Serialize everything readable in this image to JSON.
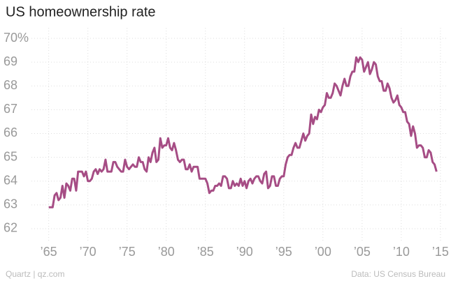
{
  "chart_data": {
    "type": "line",
    "title": "US homeownership rate",
    "source": "Data: US Census Bureau",
    "credit": "Quartz | qz.com",
    "xlim": [
      1962.8,
      2015.9
    ],
    "ylim": [
      61.5,
      70.44
    ],
    "xticks": [
      {
        "value": 1965,
        "label": "’65"
      },
      {
        "value": 1970,
        "label": "’70"
      },
      {
        "value": 1975,
        "label": "’75"
      },
      {
        "value": 1980,
        "label": "’80"
      },
      {
        "value": 1985,
        "label": "’85"
      },
      {
        "value": 1990,
        "label": "’90"
      },
      {
        "value": 1995,
        "label": "’95"
      },
      {
        "value": 2000,
        "label": "’00"
      },
      {
        "value": 2005,
        "label": "’05"
      },
      {
        "value": 2010,
        "label": "’10"
      },
      {
        "value": 2015,
        "label": "’15"
      }
    ],
    "yticks": [
      62,
      63,
      64,
      65,
      66,
      67,
      68,
      69,
      {
        "value": 70,
        "label": "70%"
      }
    ],
    "grid": true,
    "x": [
      1965,
      1965.25,
      1965.5,
      1965.75,
      1966,
      1966.25,
      1966.5,
      1966.75,
      1967,
      1967.25,
      1967.5,
      1967.75,
      1968,
      1968.25,
      1968.5,
      1968.75,
      1969,
      1969.25,
      1969.5,
      1969.75,
      1970,
      1970.25,
      1970.5,
      1970.75,
      1971,
      1971.25,
      1971.5,
      1971.75,
      1972,
      1972.25,
      1972.5,
      1972.75,
      1973,
      1973.25,
      1973.5,
      1973.75,
      1974,
      1974.25,
      1974.5,
      1974.75,
      1975,
      1975.25,
      1975.5,
      1975.75,
      1976,
      1976.25,
      1976.5,
      1976.75,
      1977,
      1977.25,
      1977.5,
      1977.75,
      1978,
      1978.25,
      1978.5,
      1978.75,
      1979,
      1979.25,
      1979.5,
      1979.75,
      1980,
      1980.25,
      1980.5,
      1980.75,
      1981,
      1981.25,
      1981.5,
      1981.75,
      1982,
      1982.25,
      1982.5,
      1982.75,
      1983,
      1983.25,
      1983.5,
      1983.75,
      1984,
      1984.25,
      1984.5,
      1984.75,
      1985,
      1985.25,
      1985.5,
      1985.75,
      1986,
      1986.25,
      1986.5,
      1986.75,
      1987,
      1987.25,
      1987.5,
      1987.75,
      1988,
      1988.25,
      1988.5,
      1988.75,
      1989,
      1989.25,
      1989.5,
      1989.75,
      1990,
      1990.25,
      1990.5,
      1990.75,
      1991,
      1991.25,
      1991.5,
      1991.75,
      1992,
      1992.25,
      1992.5,
      1992.75,
      1993,
      1993.25,
      1993.5,
      1993.75,
      1994,
      1994.25,
      1994.5,
      1994.75,
      1995,
      1995.25,
      1995.5,
      1995.75,
      1996,
      1996.25,
      1996.5,
      1996.75,
      1997,
      1997.25,
      1997.5,
      1997.75,
      1998,
      1998.25,
      1998.5,
      1998.75,
      1999,
      1999.25,
      1999.5,
      1999.75,
      2000,
      2000.25,
      2000.5,
      2000.75,
      2001,
      2001.25,
      2001.5,
      2001.75,
      2002,
      2002.25,
      2002.5,
      2002.75,
      2003,
      2003.25,
      2003.5,
      2003.75,
      2004,
      2004.25,
      2004.5,
      2004.75,
      2005,
      2005.25,
      2005.5,
      2005.75,
      2006,
      2006.25,
      2006.5,
      2006.75,
      2007,
      2007.25,
      2007.5,
      2007.75,
      2008,
      2008.25,
      2008.5,
      2008.75,
      2009,
      2009.25,
      2009.5,
      2009.75,
      2010,
      2010.25,
      2010.5,
      2010.75,
      2011,
      2011.25,
      2011.5,
      2011.75,
      2012,
      2012.25,
      2012.5,
      2012.75,
      2013,
      2013.25,
      2013.5,
      2013.75,
      2014,
      2014.25,
      2014.5
    ],
    "series": [
      {
        "color": "#a64d85",
        "values": [
          62.9,
          62.9,
          62.9,
          63.4,
          63.5,
          63.2,
          63.3,
          63.8,
          63.3,
          63.9,
          63.8,
          63.6,
          64.1,
          64.1,
          63.6,
          64.4,
          64.4,
          64.4,
          64.2,
          64.4,
          64.0,
          64.0,
          64.1,
          64.4,
          64.5,
          64.3,
          64.5,
          64.4,
          64.5,
          64.9,
          64.4,
          64.4,
          64.4,
          64.8,
          64.8,
          64.6,
          64.5,
          64.4,
          64.4,
          64.9,
          64.6,
          64.5,
          64.6,
          64.7,
          64.6,
          64.6,
          65.0,
          64.8,
          64.8,
          64.5,
          64.4,
          65.0,
          64.8,
          65.2,
          65.4,
          64.8,
          64.9,
          65.8,
          65.4,
          65.5,
          65.5,
          65.8,
          65.4,
          65.3,
          65.6,
          65.3,
          64.9,
          64.8,
          64.9,
          64.9,
          64.5,
          64.5,
          64.7,
          64.4,
          64.6,
          64.6,
          64.6,
          64.1,
          64.1,
          64.1,
          64.1,
          63.9,
          63.5,
          63.6,
          63.6,
          63.8,
          63.8,
          63.9,
          63.8,
          64.2,
          64.2,
          64.1,
          63.7,
          63.7,
          64.0,
          63.8,
          63.9,
          63.8,
          64.1,
          63.8,
          64.0,
          63.7,
          64.0,
          64.1,
          63.9,
          64.1,
          64.2,
          64.2,
          64.0,
          63.9,
          64.3,
          64.4,
          63.7,
          63.8,
          64.2,
          64.2,
          63.8,
          63.8,
          64.1,
          64.2,
          64.2,
          64.7,
          65.0,
          65.1,
          65.1,
          65.4,
          65.6,
          65.4,
          65.4,
          65.7,
          66.0,
          65.7,
          65.9,
          66.0,
          66.8,
          66.4,
          66.7,
          66.6,
          67.0,
          66.9,
          67.1,
          67.2,
          67.7,
          67.5,
          67.5,
          67.7,
          68.1,
          68.0,
          67.8,
          67.6,
          68.0,
          68.3,
          68.0,
          68.0,
          68.4,
          68.6,
          68.6,
          69.2,
          69.0,
          69.2,
          69.1,
          68.6,
          68.8,
          69.0,
          68.5,
          68.7,
          69.0,
          68.9,
          68.4,
          68.2,
          68.2,
          67.8,
          67.8,
          68.1,
          67.9,
          67.5,
          67.3,
          67.4,
          67.6,
          67.2,
          67.1,
          66.9,
          66.9,
          66.5,
          66.4,
          65.9,
          66.3,
          66.0,
          65.4,
          65.5,
          65.5,
          65.4,
          65.0,
          65.0,
          65.3,
          65.2,
          64.8,
          64.7,
          64.4
        ]
      }
    ]
  }
}
